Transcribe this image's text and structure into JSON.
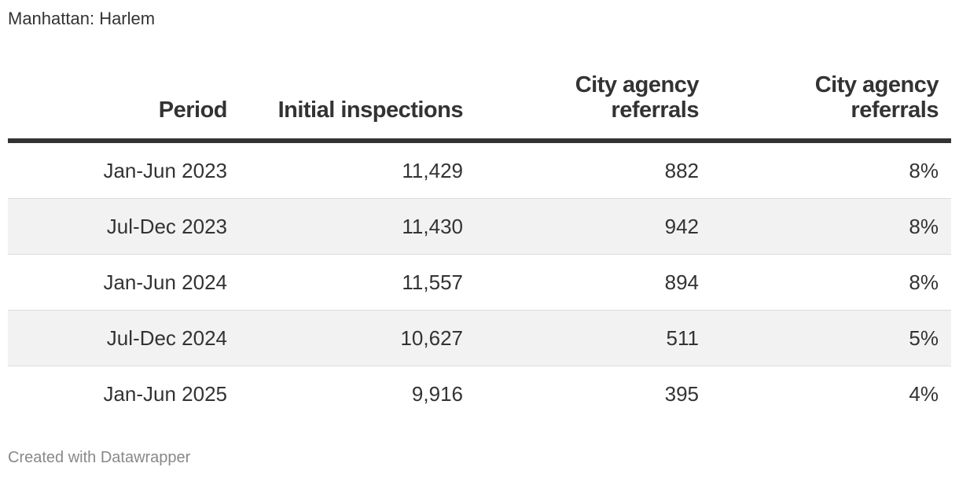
{
  "subtitle": "Manhattan: Harlem",
  "footer": "Created with Datawrapper",
  "chart_data": {
    "type": "table",
    "columns": [
      "Period",
      "Initial inspections",
      "City agency referrals",
      "City agency referrals"
    ],
    "rows": [
      [
        "Jan-Jun 2023",
        "11,429",
        "882",
        "8%"
      ],
      [
        "Jul-Dec 2023",
        "11,430",
        "942",
        "8%"
      ],
      [
        "Jan-Jun 2024",
        "11,557",
        "894",
        "8%"
      ],
      [
        "Jul-Dec 2024",
        "10,627",
        "511",
        "5%"
      ],
      [
        "Jan-Jun 2025",
        "9,916",
        "395",
        "4%"
      ]
    ]
  }
}
